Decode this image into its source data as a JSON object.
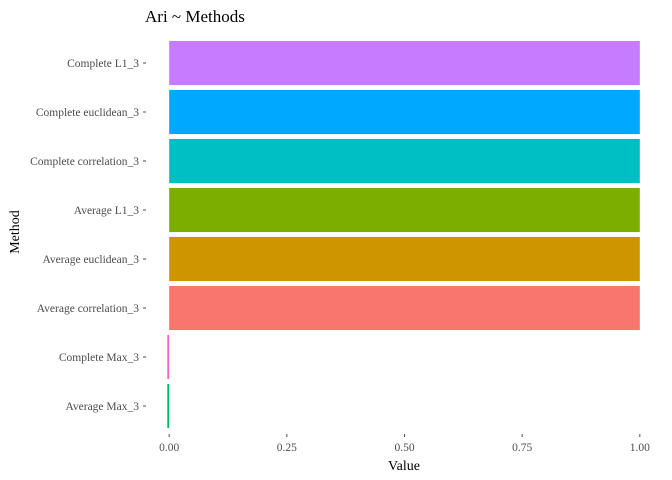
{
  "chart_data": {
    "type": "bar",
    "orientation": "horizontal",
    "title": "Ari ~ Methods",
    "xlabel": "Value",
    "ylabel": "Method",
    "xlim": [
      0,
      1
    ],
    "x_ticks": [
      "0.00",
      "0.25",
      "0.50",
      "0.75",
      "1.00"
    ],
    "x_tick_values": [
      0,
      0.25,
      0.5,
      0.75,
      1
    ],
    "grid": false,
    "legend": "none",
    "categories": [
      "Complete L1_3",
      "Complete euclidean_3",
      "Complete correlation_3",
      "Average L1_3",
      "Average euclidean_3",
      "Average correlation_3",
      "Complete Max_3",
      "Average Max_3"
    ],
    "values": [
      1.0,
      1.0,
      1.0,
      1.0,
      1.0,
      1.0,
      -0.004,
      -0.004
    ],
    "colors": [
      "#C77CFF",
      "#00A9FF",
      "#00BFC4",
      "#7CAE00",
      "#CD9600",
      "#F8766D",
      "#FF61CC",
      "#00BE67"
    ]
  }
}
